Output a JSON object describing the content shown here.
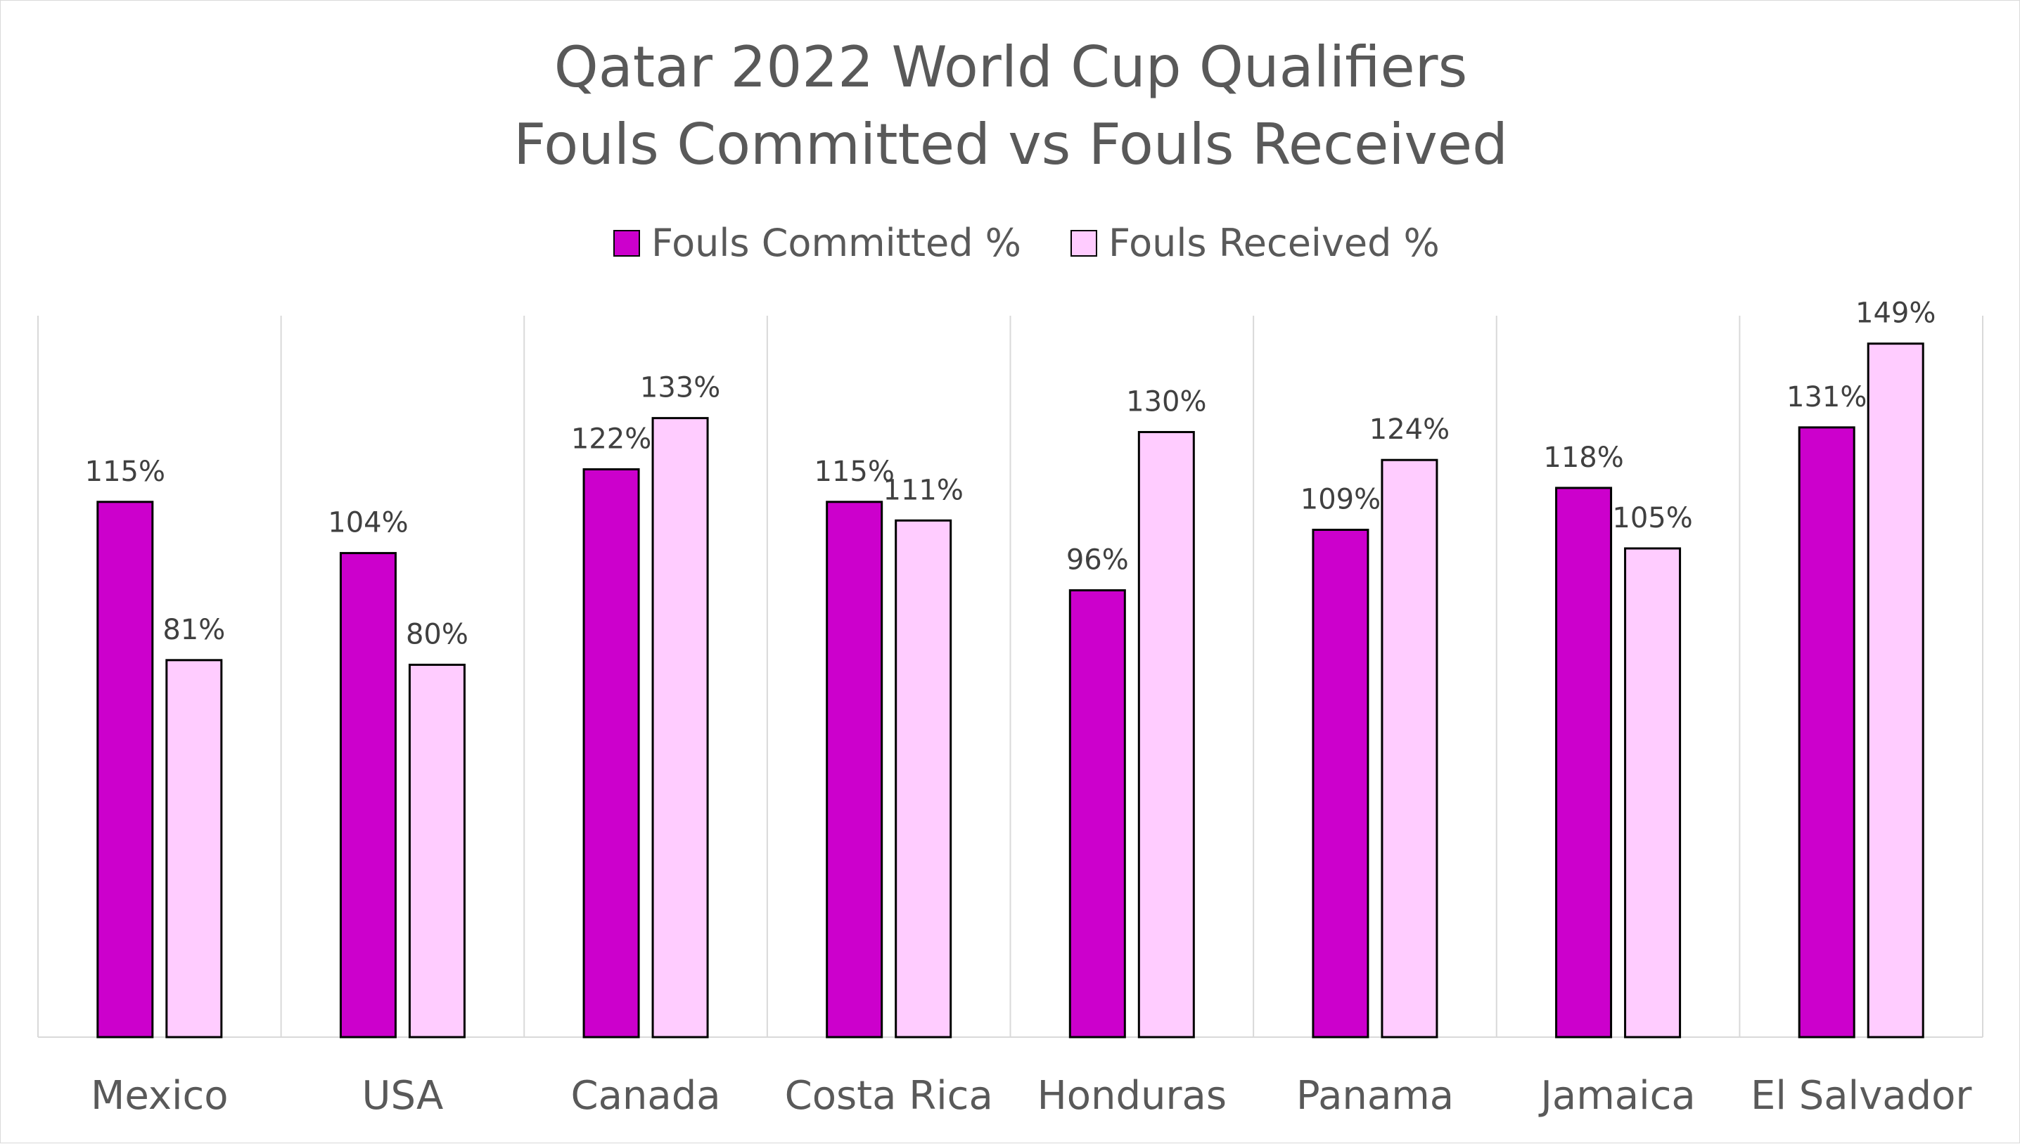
{
  "chart_data": {
    "type": "bar",
    "title": [
      "Qatar 2022 World Cup Qualifiers",
      "Fouls Committed vs Fouls Received"
    ],
    "categories": [
      "Mexico",
      "USA",
      "Canada",
      "Costa Rica",
      "Honduras",
      "Panama",
      "Jamaica",
      "El Salvador"
    ],
    "series": [
      {
        "name": "Fouls Committed %",
        "color": "#cc00cc",
        "values": [
          115,
          104,
          122,
          115,
          96,
          109,
          118,
          131
        ],
        "labels": [
          "115%",
          "104%",
          "122%",
          "115%",
          "96%",
          "109%",
          "118%",
          "131%"
        ]
      },
      {
        "name": "Fouls Received %",
        "color": "#ffccff",
        "values": [
          81,
          80,
          133,
          111,
          130,
          124,
          105,
          149
        ],
        "labels": [
          "81%",
          "80%",
          "133%",
          "111%",
          "130%",
          "124%",
          "105%",
          "149%"
        ]
      }
    ],
    "ylim": [
      0,
      155
    ],
    "legend_position": "top",
    "grid": "vertical category separators",
    "bar_outline_color": "#000000"
  }
}
